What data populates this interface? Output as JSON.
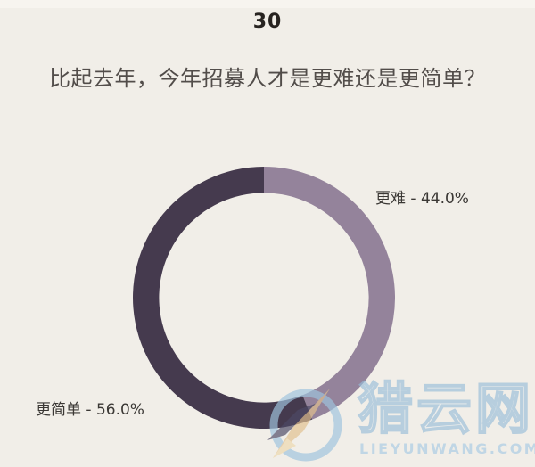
{
  "page": {
    "number": "30",
    "background_color": "#f1eee8"
  },
  "title": "比起去年，今年招募人才是更难还是更简单？",
  "chart_data": {
    "type": "pie",
    "subtype": "donut",
    "title": "比起去年，今年招募人才是更难还是更简单？",
    "categories": [
      "更难",
      "更简单"
    ],
    "values": [
      44.0,
      56.0
    ],
    "unit": "%",
    "colors": [
      "#94839b",
      "#453a4e"
    ],
    "start_angle_deg": 0,
    "direction": "clockwise",
    "inner_radius_ratio": 0.8,
    "legend_position": "none",
    "labels": [
      {
        "text": "更难 - 44.0%",
        "category": "更难",
        "value": 44.0
      },
      {
        "text": "更简单 - 56.0%",
        "category": "更简单",
        "value": 56.0
      }
    ]
  },
  "watermark": {
    "name": "猎云网",
    "caption": "LIEYUNWANG.COM",
    "blue": "#a9cce4",
    "tan": "#e2c18f",
    "navy": "#4d4a66"
  }
}
